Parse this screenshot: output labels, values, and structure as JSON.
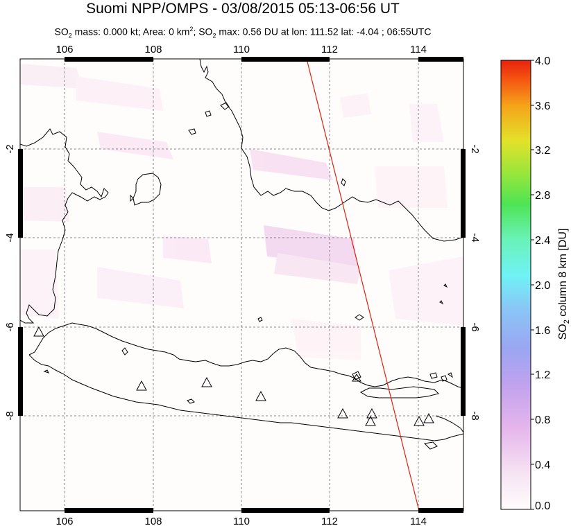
{
  "header": {
    "title": "Suomi NPP/OMPS - 03/08/2015 05:13-06:56 UT",
    "subtitle_parts": {
      "so2_1": "SO",
      "sub_1": "2",
      "mass": " mass: 0.000 kt; Area: 0 km",
      "sup_2": "2",
      "so2_2": "; SO",
      "sub_2": "2",
      "rest": " max: 0.56 DU at lon: 111.52 lat: -4.04 ; 06:55UTC"
    }
  },
  "map": {
    "lon_range": [
      105,
      115
    ],
    "lat_range": [
      -10.2,
      -0.2
    ],
    "lon_ticks": [
      "106",
      "108",
      "110",
      "112",
      "114"
    ],
    "lat_ticks": [
      "-2",
      "-4",
      "-6",
      "-8"
    ],
    "volcano_count": 12,
    "orbit_line_color": "#e0200e",
    "volcano_marker": "triangle-outline"
  },
  "colorbar": {
    "title": "SO2 column 8 km [DU]",
    "title_parts": {
      "a": "SO",
      "b": "2",
      "c": " column 8 km [DU]"
    },
    "ticks": [
      "4.0",
      "3.6",
      "3.2",
      "2.8",
      "2.4",
      "2.0",
      "1.6",
      "1.2",
      "0.8",
      "0.4",
      "0.0"
    ],
    "range": [
      0.0,
      4.0
    ]
  }
}
